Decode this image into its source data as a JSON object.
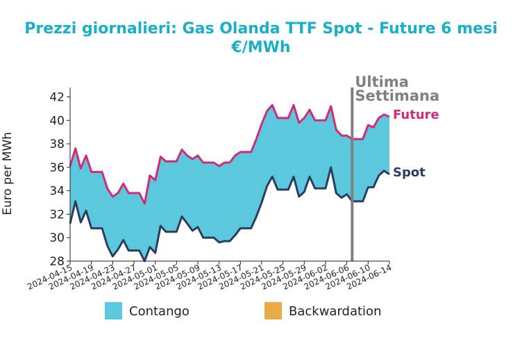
{
  "chart_data": {
    "type": "area",
    "title": "Prezzi giornalieri: Gas Olanda TTF Spot - Future 6 mesi",
    "subtitle": "€/MWh",
    "xlabel": "",
    "ylabel": "Euro per MWh",
    "ylim": [
      28,
      42.8
    ],
    "yticks": [
      28,
      30,
      32,
      34,
      36,
      38,
      40,
      42
    ],
    "x_range": [
      "2024-04-15",
      "2024-06-14"
    ],
    "xticks": [
      "2024-04-15",
      "2024-04-19",
      "2024-04-23",
      "2024-04-27",
      "2024-05-01",
      "2024-05-05",
      "2024-05-09",
      "2024-05-13",
      "2024-05-17",
      "2024-05-21",
      "2024-05-25",
      "2024-05-29",
      "2024-06-02",
      "2024-06-06",
      "2024-06-10",
      "2024-06-14"
    ],
    "grid": false,
    "legend_position": "bottom",
    "legend": [
      {
        "label": "Contango",
        "color": "#5bc8dd"
      },
      {
        "label": "Backwardation",
        "color": "#e9ab4a"
      }
    ],
    "annotation": {
      "label_line1": "Ultima",
      "label_line2": "Settimana",
      "x": "2024-06-07"
    },
    "series": [
      {
        "name": "Future",
        "color": "#d02a78",
        "x": [
          "2024-04-15",
          "2024-04-16",
          "2024-04-17",
          "2024-04-18",
          "2024-04-19",
          "2024-04-20",
          "2024-04-21",
          "2024-04-22",
          "2024-04-23",
          "2024-04-24",
          "2024-04-25",
          "2024-04-26",
          "2024-04-27",
          "2024-04-28",
          "2024-04-29",
          "2024-04-30",
          "2024-05-01",
          "2024-05-02",
          "2024-05-03",
          "2024-05-04",
          "2024-05-05",
          "2024-05-06",
          "2024-05-07",
          "2024-05-08",
          "2024-05-09",
          "2024-05-10",
          "2024-05-11",
          "2024-05-12",
          "2024-05-13",
          "2024-05-14",
          "2024-05-15",
          "2024-05-16",
          "2024-05-17",
          "2024-05-18",
          "2024-05-19",
          "2024-05-20",
          "2024-05-21",
          "2024-05-22",
          "2024-05-23",
          "2024-05-24",
          "2024-05-25",
          "2024-05-26",
          "2024-05-27",
          "2024-05-28",
          "2024-05-29",
          "2024-05-30",
          "2024-05-31",
          "2024-06-01",
          "2024-06-02",
          "2024-06-03",
          "2024-06-04",
          "2024-06-05",
          "2024-06-06",
          "2024-06-07",
          "2024-06-08",
          "2024-06-09",
          "2024-06-10",
          "2024-06-11",
          "2024-06-12",
          "2024-06-13",
          "2024-06-14"
        ],
        "values": [
          36.1,
          37.6,
          35.9,
          37.0,
          35.6,
          35.6,
          35.6,
          34.2,
          33.5,
          33.8,
          34.6,
          33.8,
          33.8,
          33.8,
          32.9,
          35.3,
          34.9,
          36.9,
          36.5,
          36.5,
          36.5,
          37.5,
          37.0,
          36.7,
          37.0,
          36.4,
          36.4,
          36.4,
          36.1,
          36.4,
          36.4,
          37.0,
          37.3,
          37.3,
          37.3,
          38.4,
          39.7,
          40.8,
          41.3,
          40.2,
          40.2,
          40.2,
          41.3,
          39.8,
          40.2,
          40.9,
          40.0,
          40.0,
          40.0,
          41.2,
          39.2,
          38.7,
          38.7,
          38.4,
          38.4,
          38.4,
          39.6,
          39.4,
          40.2,
          40.5,
          40.3
        ]
      },
      {
        "name": "Spot",
        "color": "#2a3d5c",
        "x": [
          "2024-04-15",
          "2024-04-16",
          "2024-04-17",
          "2024-04-18",
          "2024-04-19",
          "2024-04-20",
          "2024-04-21",
          "2024-04-22",
          "2024-04-23",
          "2024-04-24",
          "2024-04-25",
          "2024-04-26",
          "2024-04-27",
          "2024-04-28",
          "2024-04-29",
          "2024-04-30",
          "2024-05-01",
          "2024-05-02",
          "2024-05-03",
          "2024-05-04",
          "2024-05-05",
          "2024-05-06",
          "2024-05-07",
          "2024-05-08",
          "2024-05-09",
          "2024-05-10",
          "2024-05-11",
          "2024-05-12",
          "2024-05-13",
          "2024-05-14",
          "2024-05-15",
          "2024-05-16",
          "2024-05-17",
          "2024-05-18",
          "2024-05-19",
          "2024-05-20",
          "2024-05-21",
          "2024-05-22",
          "2024-05-23",
          "2024-05-24",
          "2024-05-25",
          "2024-05-26",
          "2024-05-27",
          "2024-05-28",
          "2024-05-29",
          "2024-05-30",
          "2024-05-31",
          "2024-06-01",
          "2024-06-02",
          "2024-06-03",
          "2024-06-04",
          "2024-06-05",
          "2024-06-06",
          "2024-06-07",
          "2024-06-08",
          "2024-06-09",
          "2024-06-10",
          "2024-06-11",
          "2024-06-12",
          "2024-06-13",
          "2024-06-14"
        ],
        "values": [
          31.2,
          33.1,
          31.3,
          32.3,
          30.8,
          30.8,
          30.8,
          29.3,
          28.4,
          29.0,
          29.8,
          28.9,
          28.9,
          28.9,
          28.0,
          29.2,
          28.7,
          31.0,
          30.5,
          30.5,
          30.5,
          31.8,
          31.2,
          30.6,
          30.9,
          30.0,
          30.0,
          30.0,
          29.6,
          29.7,
          29.7,
          30.2,
          30.8,
          30.8,
          30.8,
          31.8,
          33.0,
          34.4,
          35.2,
          34.1,
          34.1,
          34.1,
          35.2,
          33.5,
          33.9,
          35.2,
          34.2,
          34.2,
          34.2,
          36.0,
          33.8,
          33.4,
          33.7,
          33.1,
          33.1,
          33.1,
          34.3,
          34.3,
          35.3,
          35.7,
          35.4
        ]
      }
    ]
  }
}
